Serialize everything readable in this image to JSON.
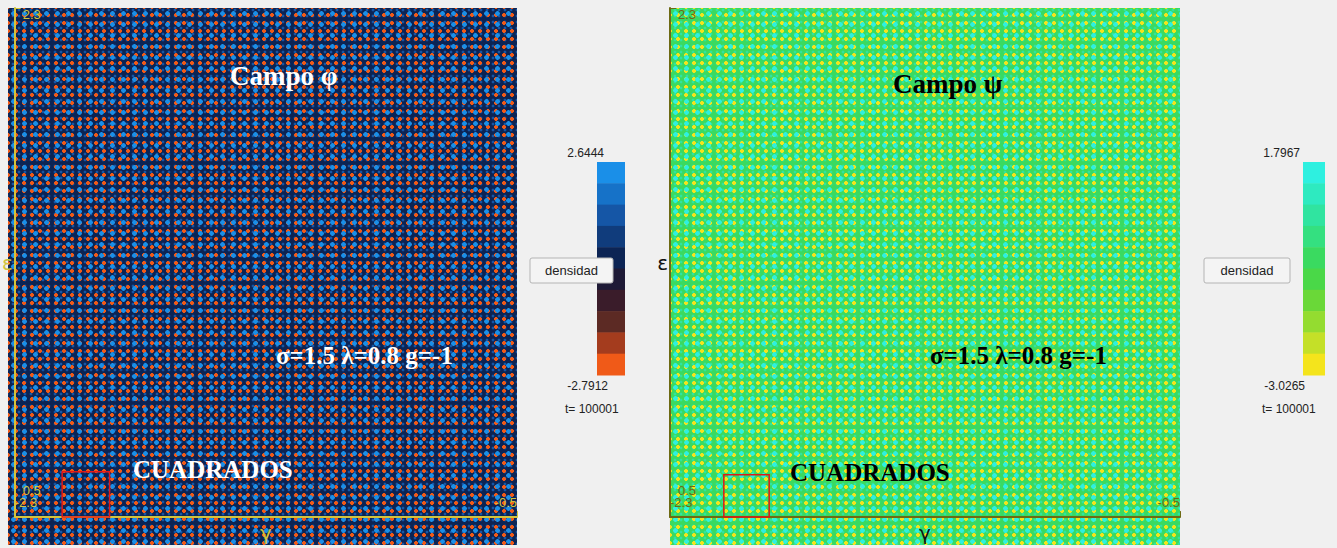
{
  "chart_data": [
    {
      "type": "field",
      "title": "Campo φ",
      "annotation": "σ=1.5 λ=0.8 g=-1",
      "label": "CUADRADOS",
      "xlabel": "γ",
      "ylabel": "ε",
      "xlim": [
        -2.3,
        -0.5
      ],
      "ylim": [
        0.5,
        2.3
      ],
      "xticks": [
        -2.3,
        -0.5
      ],
      "yticks": [
        0.5,
        2.3
      ],
      "colorbar": {
        "range": [
          -2.7912,
          2.6444
        ],
        "colors": [
          "#1a8fe8",
          "#1672c8",
          "#1556a6",
          "#103c7c",
          "#0c2454",
          "#1e1a36",
          "#3a1c2a",
          "#5c2a24",
          "#a43c1e",
          "#f05a18"
        ]
      },
      "button": "densidad",
      "time": "t= 100001",
      "region": {
        "x": [
          -2.13,
          -1.96
        ],
        "y": [
          0.5,
          0.66
        ]
      }
    },
    {
      "type": "field",
      "title": "Campo ψ",
      "annotation": "σ=1.5 λ=0.8 g=-1",
      "label": "CUADRADOS",
      "xlabel": "γ",
      "ylabel": "ε",
      "xlim": [
        -2.3,
        -0.5
      ],
      "ylim": [
        0.5,
        2.3
      ],
      "xticks": [
        -2.3,
        -0.5
      ],
      "yticks": [
        0.5,
        2.3
      ],
      "colorbar": {
        "range": [
          -3.0265,
          1.7967
        ],
        "colors": [
          "#2ef0e0",
          "#2eeac0",
          "#30e4a0",
          "#34e080",
          "#3ada60",
          "#4ad848",
          "#6ad838",
          "#94dc30",
          "#c4e028",
          "#f4e41c"
        ]
      },
      "button": "densidad",
      "time": "t= 100001",
      "region": {
        "x": [
          -2.11,
          -1.95
        ],
        "y": [
          0.5,
          0.65
        ]
      }
    }
  ]
}
